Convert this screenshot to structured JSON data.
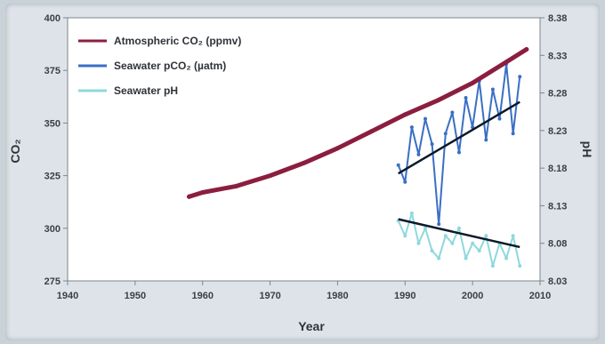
{
  "chart_data": {
    "type": "line",
    "xlabel": "Year",
    "ylabel_left": "CO₂",
    "ylabel_right": "pH",
    "xlim": [
      1940,
      2010
    ],
    "ylim_left": [
      275,
      400
    ],
    "ylim_right": [
      8.03,
      8.38
    ],
    "x_ticks": [
      "1940",
      "1950",
      "1960",
      "1970",
      "1980",
      "1990",
      "2000",
      "2010"
    ],
    "y_left_ticks": [
      "275",
      "300",
      "325",
      "350",
      "375",
      "400"
    ],
    "y_right_ticks": [
      "8.03",
      "8.08",
      "8.13",
      "8.18",
      "8.23",
      "8.28",
      "8.33",
      "8.38"
    ],
    "legend_position": "top-left",
    "series": [
      {
        "name": "Atmospheric CO₂ (ppmv)",
        "axis": "left",
        "color": "#8b1e3f",
        "x": [
          1958,
          1960,
          1965,
          1970,
          1975,
          1980,
          1985,
          1990,
          1995,
          2000,
          2005,
          2008
        ],
        "values": [
          315,
          317,
          320,
          325,
          331,
          338,
          346,
          354,
          361,
          369,
          379,
          385
        ]
      },
      {
        "name": "Seawater pCO₂ (µatm)",
        "axis": "left",
        "color": "#3a6fc4",
        "x": [
          1989,
          1990,
          1991,
          1992,
          1993,
          1994,
          1995,
          1996,
          1997,
          1998,
          1999,
          2000,
          2001,
          2002,
          2003,
          2004,
          2005,
          2006,
          2007
        ],
        "values": [
          330,
          322,
          348,
          335,
          352,
          340,
          302,
          345,
          355,
          336,
          362,
          348,
          370,
          342,
          366,
          352,
          378,
          345,
          372
        ]
      },
      {
        "name": "Seawater pH",
        "axis": "right",
        "color": "#8fd8dc",
        "x": [
          1989,
          1990,
          1991,
          1992,
          1993,
          1994,
          1995,
          1996,
          1997,
          1998,
          1999,
          2000,
          2001,
          2002,
          2003,
          2004,
          2005,
          2006,
          2007
        ],
        "values": [
          8.11,
          8.09,
          8.12,
          8.08,
          8.1,
          8.07,
          8.06,
          8.09,
          8.08,
          8.1,
          8.06,
          8.08,
          8.07,
          8.09,
          8.05,
          8.08,
          8.06,
          8.09,
          8.05
        ]
      }
    ],
    "trend_lines": [
      {
        "series": "Seawater pCO₂ (µatm)",
        "axis": "left",
        "x": [
          1989,
          2007
        ],
        "values": [
          326,
          360
        ]
      },
      {
        "series": "Seawater pH",
        "axis": "right",
        "x": [
          1989,
          2007
        ],
        "values": [
          8.112,
          8.075
        ]
      }
    ]
  }
}
